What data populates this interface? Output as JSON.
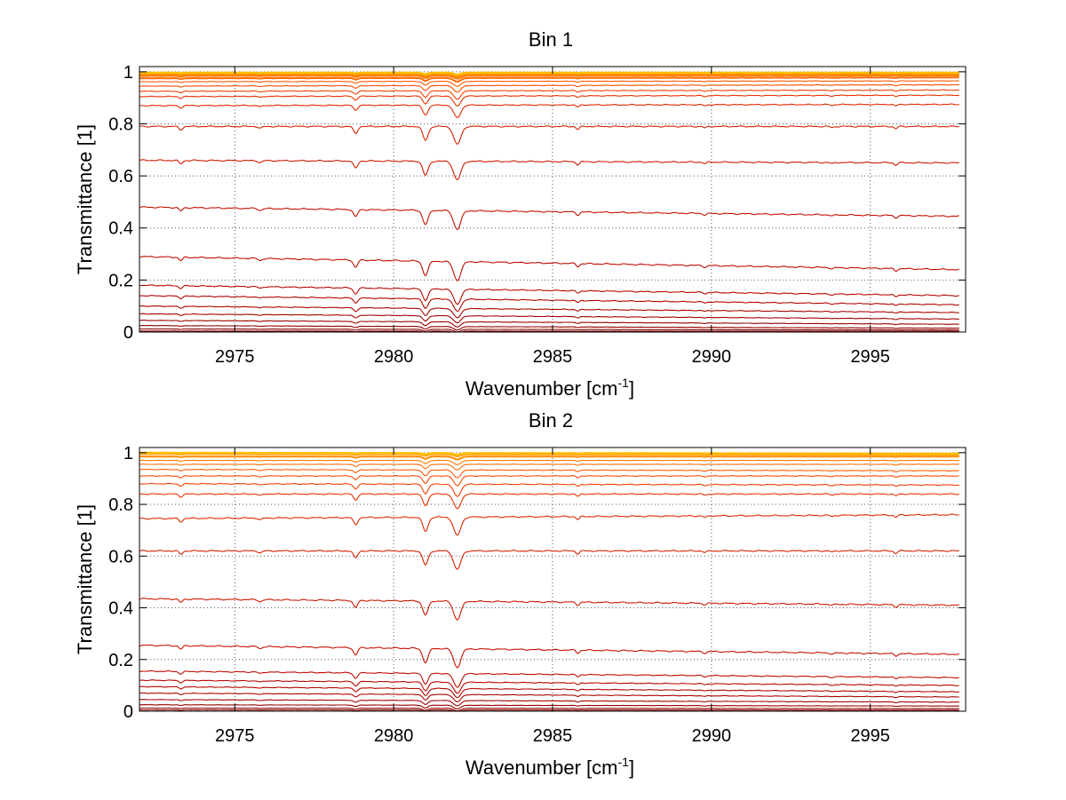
{
  "chart_data": [
    {
      "type": "line",
      "title": "Bin 1",
      "xlabel": "Wavenumber [cm",
      "xlabel_sup": "-1",
      "xlabel_close": "]",
      "ylabel": "Transmittance [1]",
      "xlim": [
        2972,
        2998
      ],
      "ylim": [
        0,
        1.02
      ],
      "xticks": [
        2975,
        2980,
        2985,
        2990,
        2995
      ],
      "yticks": [
        0,
        0.2,
        0.4,
        0.6,
        0.8,
        1
      ],
      "ytick_labels": [
        "0",
        "0.2",
        "0.4",
        "0.6",
        "0.8",
        "1"
      ],
      "grid": true,
      "x_range": [
        2972,
        2997.8
      ],
      "absorption_lines_cm-1": [
        2973.3,
        2975.8,
        2978.8,
        2981.0,
        2982.0,
        2985.8,
        2989.8,
        2993.8,
        2995.8
      ],
      "series_endpoints": [
        {
          "x": [
            2972,
            2997.8
          ],
          "y": [
            0.997,
            0.997
          ],
          "color": "#ffc000"
        },
        {
          "x": [
            2972,
            2997.8
          ],
          "y": [
            0.994,
            0.995
          ],
          "color": "#ffa500"
        },
        {
          "x": [
            2972,
            2997.8
          ],
          "y": [
            0.99,
            0.99
          ],
          "color": "#ff8c00"
        },
        {
          "x": [
            2972,
            2997.8
          ],
          "y": [
            0.984,
            0.986
          ],
          "color": "#ff7a00"
        },
        {
          "x": [
            2972,
            2997.8
          ],
          "y": [
            0.975,
            0.978
          ],
          "color": "#ff6a00"
        },
        {
          "x": [
            2972,
            2997.8
          ],
          "y": [
            0.962,
            0.965
          ],
          "color": "#ff5800"
        },
        {
          "x": [
            2972,
            2997.8
          ],
          "y": [
            0.945,
            0.95
          ],
          "color": "#fa4a00"
        },
        {
          "x": [
            2972,
            2997.8
          ],
          "y": [
            0.925,
            0.93
          ],
          "color": "#f23e00"
        },
        {
          "x": [
            2972,
            2997.8
          ],
          "y": [
            0.905,
            0.91
          ],
          "color": "#e83200"
        },
        {
          "x": [
            2972,
            2997.8
          ],
          "y": [
            0.87,
            0.875
          ],
          "color": "#e02800"
        },
        {
          "x": [
            2972,
            2997.8
          ],
          "y": [
            0.79,
            0.79
          ],
          "color": "#d82000"
        },
        {
          "x": [
            2972,
            2997.8
          ],
          "y": [
            0.66,
            0.65
          ],
          "color": "#d01800"
        },
        {
          "x": [
            2972,
            2997.8
          ],
          "y": [
            0.48,
            0.445
          ],
          "color": "#c81000"
        },
        {
          "x": [
            2972,
            2997.8
          ],
          "y": [
            0.29,
            0.24
          ],
          "color": "#c00c00"
        },
        {
          "x": [
            2972,
            2997.8
          ],
          "y": [
            0.18,
            0.14
          ],
          "color": "#b80800"
        },
        {
          "x": [
            2972,
            2997.8
          ],
          "y": [
            0.14,
            0.105
          ],
          "color": "#b00600"
        },
        {
          "x": [
            2972,
            2997.8
          ],
          "y": [
            0.1,
            0.075
          ],
          "color": "#a80400"
        },
        {
          "x": [
            2972,
            2997.8
          ],
          "y": [
            0.07,
            0.05
          ],
          "color": "#a00200"
        },
        {
          "x": [
            2972,
            2997.8
          ],
          "y": [
            0.045,
            0.03
          ],
          "color": "#980000"
        },
        {
          "x": [
            2972,
            2997.8
          ],
          "y": [
            0.025,
            0.015
          ],
          "color": "#900000"
        },
        {
          "x": [
            2972,
            2997.8
          ],
          "y": [
            0.012,
            0.008
          ],
          "color": "#880000"
        },
        {
          "x": [
            2972,
            2997.8
          ],
          "y": [
            0.004,
            0.003
          ],
          "color": "#800000"
        }
      ]
    },
    {
      "type": "line",
      "title": "Bin 2",
      "xlabel": "Wavenumber [cm",
      "xlabel_sup": "-1",
      "xlabel_close": "]",
      "ylabel": "Transmittance [1]",
      "xlim": [
        2972,
        2998
      ],
      "ylim": [
        0,
        1.02
      ],
      "xticks": [
        2975,
        2980,
        2985,
        2990,
        2995
      ],
      "yticks": [
        0,
        0.2,
        0.4,
        0.6,
        0.8,
        1
      ],
      "ytick_labels": [
        "0",
        "0.2",
        "0.4",
        "0.6",
        "0.8",
        "1"
      ],
      "grid": true,
      "x_range": [
        2972,
        2997.8
      ],
      "absorption_lines_cm-1": [
        2973.3,
        2975.8,
        2978.8,
        2981.0,
        2982.0,
        2985.8,
        2989.8,
        2993.8,
        2995.8
      ],
      "series_endpoints": [
        {
          "x": [
            2972,
            2997.8
          ],
          "y": [
            1.0,
            0.997
          ],
          "color": "#ffc000"
        },
        {
          "x": [
            2972,
            2997.8
          ],
          "y": [
            0.995,
            0.992
          ],
          "color": "#ffa500"
        },
        {
          "x": [
            2972,
            2997.8
          ],
          "y": [
            0.985,
            0.985
          ],
          "color": "#ff8c00"
        },
        {
          "x": [
            2972,
            2997.8
          ],
          "y": [
            0.97,
            0.97
          ],
          "color": "#ff7a00"
        },
        {
          "x": [
            2972,
            2997.8
          ],
          "y": [
            0.955,
            0.955
          ],
          "color": "#ff6a00"
        },
        {
          "x": [
            2972,
            2997.8
          ],
          "y": [
            0.935,
            0.93
          ],
          "color": "#ff5800"
        },
        {
          "x": [
            2972,
            2997.8
          ],
          "y": [
            0.91,
            0.91
          ],
          "color": "#fa4a00"
        },
        {
          "x": [
            2972,
            2997.8
          ],
          "y": [
            0.88,
            0.875
          ],
          "color": "#f23e00"
        },
        {
          "x": [
            2972,
            2997.8
          ],
          "y": [
            0.84,
            0.84
          ],
          "color": "#e83200"
        },
        {
          "x": [
            2972,
            2997.8
          ],
          "y": [
            0.745,
            0.76
          ],
          "color": "#e02800"
        },
        {
          "x": [
            2972,
            2997.8
          ],
          "y": [
            0.62,
            0.62
          ],
          "color": "#d82000"
        },
        {
          "x": [
            2972,
            2997.8
          ],
          "y": [
            0.435,
            0.41
          ],
          "color": "#d01800"
        },
        {
          "x": [
            2972,
            2997.8
          ],
          "y": [
            0.255,
            0.22
          ],
          "color": "#c81000"
        },
        {
          "x": [
            2972,
            2997.8
          ],
          "y": [
            0.155,
            0.13
          ],
          "color": "#c00c00"
        },
        {
          "x": [
            2972,
            2997.8
          ],
          "y": [
            0.12,
            0.1
          ],
          "color": "#b80800"
        },
        {
          "x": [
            2972,
            2997.8
          ],
          "y": [
            0.095,
            0.075
          ],
          "color": "#b00600"
        },
        {
          "x": [
            2972,
            2997.8
          ],
          "y": [
            0.07,
            0.055
          ],
          "color": "#a80400"
        },
        {
          "x": [
            2972,
            2997.8
          ],
          "y": [
            0.045,
            0.035
          ],
          "color": "#a00200"
        },
        {
          "x": [
            2972,
            2997.8
          ],
          "y": [
            0.025,
            0.02
          ],
          "color": "#980000"
        },
        {
          "x": [
            2972,
            2997.8
          ],
          "y": [
            0.012,
            0.01
          ],
          "color": "#900000"
        },
        {
          "x": [
            2972,
            2997.8
          ],
          "y": [
            0.005,
            0.004
          ],
          "color": "#880000"
        }
      ]
    }
  ]
}
